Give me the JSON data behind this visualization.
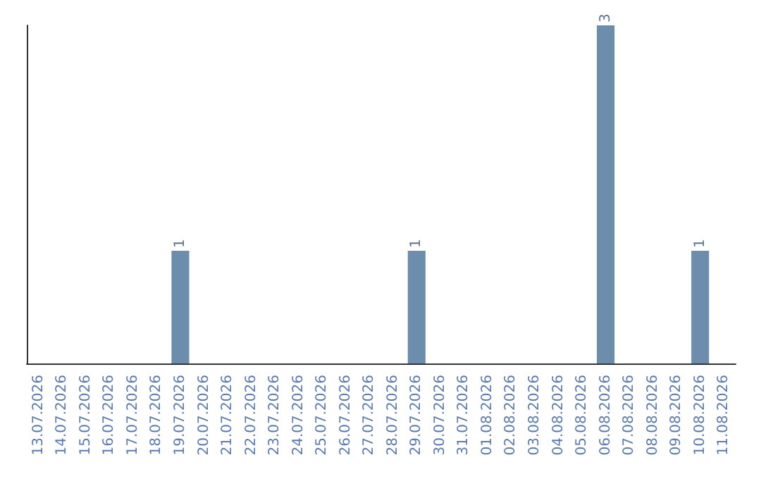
{
  "chart_data": {
    "type": "bar",
    "categories": [
      "13.07.2026",
      "14.07.2026",
      "15.07.2026",
      "16.07.2026",
      "17.07.2026",
      "18.07.2026",
      "19.07.2026",
      "20.07.2026",
      "21.07.2026",
      "22.07.2026",
      "23.07.2026",
      "24.07.2026",
      "25.07.2026",
      "26.07.2026",
      "27.07.2026",
      "28.07.2026",
      "29.07.2026",
      "30.07.2026",
      "31.07.2026",
      "01.08.2026",
      "02.08.2026",
      "03.08.2026",
      "04.08.2026",
      "05.08.2026",
      "06.08.2026",
      "07.08.2026",
      "08.08.2026",
      "09.08.2026",
      "10.08.2026",
      "11.08.2026"
    ],
    "values": [
      0,
      0,
      0,
      0,
      0,
      0,
      1,
      0,
      0,
      0,
      0,
      0,
      0,
      0,
      0,
      0,
      1,
      0,
      0,
      0,
      0,
      0,
      0,
      0,
      3,
      0,
      0,
      0,
      1,
      0
    ],
    "value_labels": [
      null,
      null,
      null,
      null,
      null,
      null,
      "1",
      null,
      null,
      null,
      null,
      null,
      null,
      null,
      null,
      null,
      "1",
      null,
      null,
      null,
      null,
      null,
      null,
      null,
      "3",
      null,
      null,
      null,
      "1",
      null
    ],
    "color": "#6d8dac",
    "tick_labels": "x"
  }
}
